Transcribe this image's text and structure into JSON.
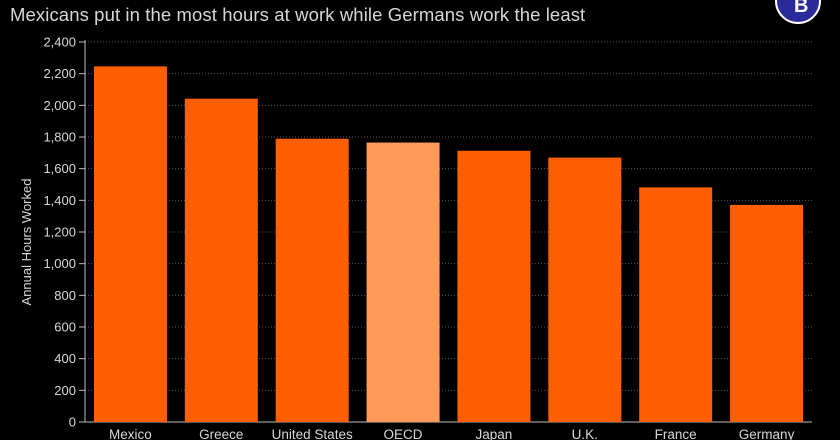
{
  "header": {
    "title_fragment": "",
    "subtitle": "Mexicans put in the most hours at work while Germans work the least"
  },
  "logo": {
    "icon": "bloomberg-logo-icon",
    "color": "#2a2a9a"
  },
  "chart_data": {
    "type": "bar",
    "title": "",
    "subtitle": "Mexicans put in the most hours at work while Germans work the least",
    "xlabel": "",
    "ylabel": "Annual Hours Worked",
    "categories": [
      "Mexico",
      "Greece",
      "United States",
      "OECD",
      "Japan",
      "U.K.",
      "France",
      "Germany"
    ],
    "values": [
      2246,
      2042,
      1789,
      1765,
      1713,
      1670,
      1482,
      1371
    ],
    "highlight_category": "OECD",
    "ylim": [
      0,
      2400
    ],
    "yticks": [
      0,
      200,
      400,
      600,
      800,
      1000,
      1200,
      1400,
      1600,
      1800,
      2000,
      2200,
      2400
    ],
    "grid": true,
    "legend": "none",
    "colors": {
      "bar": "#ff5f00",
      "highlight": "#ff9a5a",
      "background": "#000000",
      "grid": "#555555",
      "text": "#d7d7d7"
    }
  }
}
